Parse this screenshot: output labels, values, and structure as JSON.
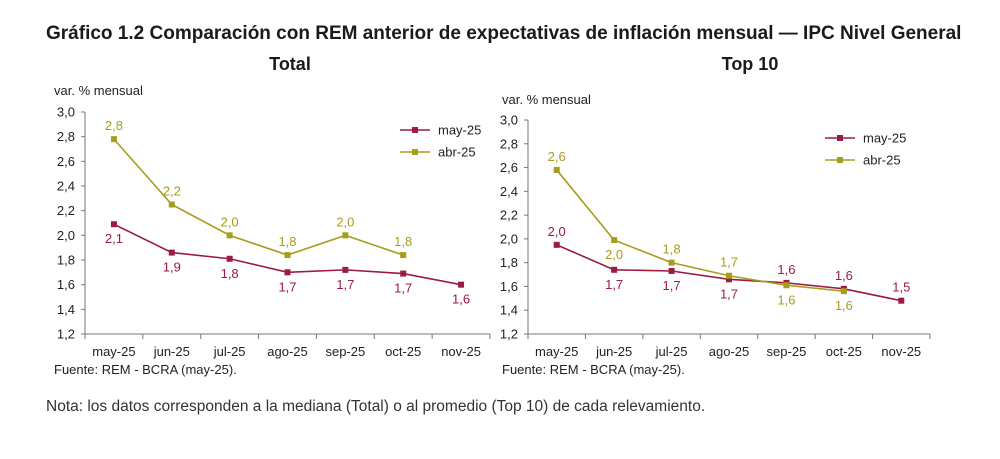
{
  "title": "Gráfico 1.2 Comparación con REM anterior de expectativas de inflación mensual — IPC Nivel General",
  "note": "Nota: los datos corresponden a la mediana (Total) o al promedio (Top 10) de cada relevamiento.",
  "colors": {
    "may25": "#9b1b43",
    "abr25": "#a79d1c",
    "axis": "#777777"
  },
  "chart_data": [
    {
      "type": "line",
      "title": "Total",
      "ylabel": "var. % mensual",
      "source": "Fuente: REM - BCRA (may-25).",
      "ylim": [
        1.2,
        3.0
      ],
      "ytick_values": [
        1.2,
        1.4,
        1.6,
        1.8,
        2.0,
        2.2,
        2.4,
        2.6,
        2.8,
        3.0
      ],
      "ytick_labels": [
        "1,2",
        "1,4",
        "1,6",
        "1,8",
        "2,0",
        "2,2",
        "2,4",
        "2,6",
        "2,8",
        "3,0"
      ],
      "categories": [
        "may-25",
        "jun-25",
        "jul-25",
        "ago-25",
        "sep-25",
        "oct-25",
        "nov-25"
      ],
      "legend_position": "top-right",
      "series": [
        {
          "name": "may-25",
          "color": "#9b1b43",
          "values": [
            2.09,
            1.86,
            1.81,
            1.7,
            1.72,
            1.69,
            1.6
          ],
          "labels": [
            "2,1",
            "1,9",
            "1,8",
            "1,7",
            "1,7",
            "1,7",
            "1,6"
          ],
          "label_pos": "below"
        },
        {
          "name": "abr-25",
          "color": "#a79d1c",
          "values": [
            2.78,
            2.25,
            2.0,
            1.84,
            2.0,
            1.84,
            null
          ],
          "labels": [
            "2,8",
            "2,2",
            "2,0",
            "1,8",
            "2,0",
            "1,8",
            null
          ],
          "label_pos": "above"
        }
      ]
    },
    {
      "type": "line",
      "title": "Top 10",
      "ylabel": "var. % mensual",
      "source": "Fuente: REM - BCRA (may-25).",
      "ylim": [
        1.2,
        3.0
      ],
      "ytick_values": [
        1.2,
        1.4,
        1.6,
        1.8,
        2.0,
        2.2,
        2.4,
        2.6,
        2.8,
        3.0
      ],
      "ytick_labels": [
        "1,2",
        "1,4",
        "1,6",
        "1,8",
        "2,0",
        "2,2",
        "2,4",
        "2,6",
        "2,8",
        "3,0"
      ],
      "categories": [
        "may-25",
        "jun-25",
        "jul-25",
        "ago-25",
        "sep-25",
        "oct-25",
        "nov-25"
      ],
      "legend_position": "top-right",
      "series": [
        {
          "name": "may-25",
          "color": "#9b1b43",
          "values": [
            1.95,
            1.74,
            1.73,
            1.66,
            1.63,
            1.58,
            1.48
          ],
          "labels": [
            "2,0",
            "1,7",
            "1,7",
            "1,7",
            "1,6",
            "1,6",
            "1,5"
          ],
          "label_pos": [
            "above",
            "below",
            "below",
            "below",
            "above",
            "above",
            "above"
          ]
        },
        {
          "name": "abr-25",
          "color": "#a79d1c",
          "values": [
            2.58,
            1.99,
            1.8,
            1.69,
            1.61,
            1.56,
            null
          ],
          "labels": [
            "2,6",
            "2,0",
            "1,8",
            "1,7",
            "1,6",
            "1,6",
            null
          ],
          "label_pos": [
            "above",
            "below",
            "above",
            "above",
            "below",
            "below",
            null
          ]
        }
      ]
    }
  ]
}
